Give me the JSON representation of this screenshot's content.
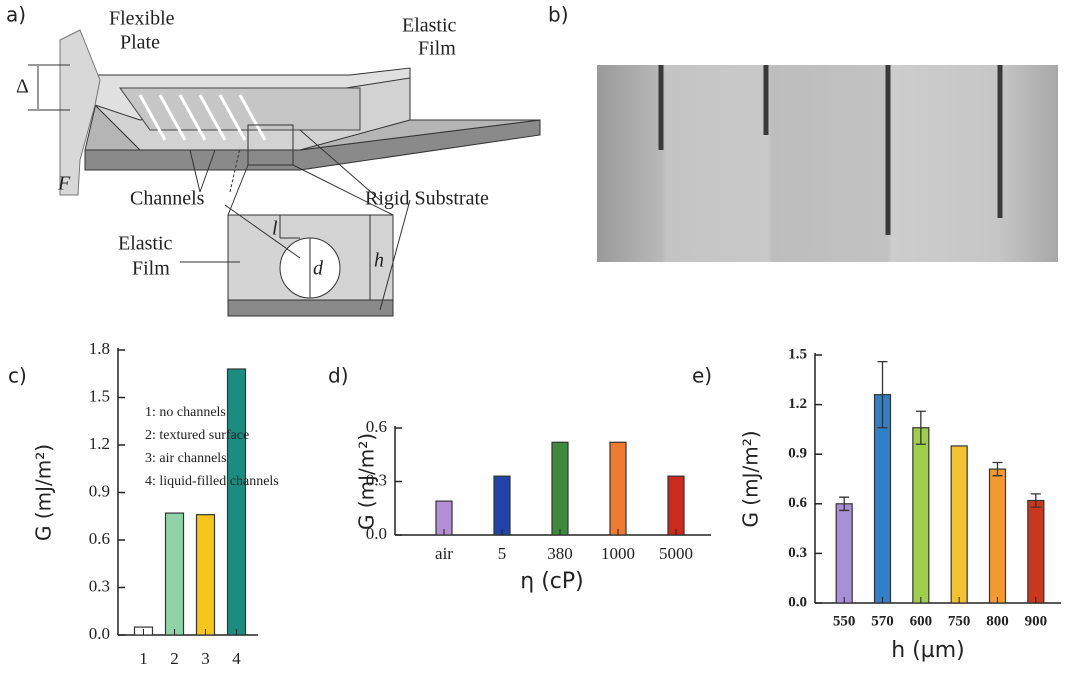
{
  "panel_labels": [
    "a)",
    "b)"
  ],
  "diagram": {
    "labels": [
      "Flexible",
      "Plate",
      "Elastic",
      "Film",
      "Δ",
      "F",
      "Channels",
      "Rigid Substrate",
      "Elastic",
      "Film",
      "l",
      "d",
      "h"
    ]
  },
  "chart_data": [
    {
      "type": "bar",
      "panel_label": "c)",
      "ylabel": "G (mJ/m²)",
      "categories": [
        "1",
        "2",
        "3",
        "4"
      ],
      "values": [
        0.05,
        0.77,
        0.76,
        1.68
      ],
      "colors": [
        "#ffffff",
        "#8fd4a8",
        "#f5c518",
        "#1a8c80"
      ],
      "ylim": [
        0,
        1.8
      ],
      "yticks": [
        {
          "value": 0,
          "label": "0.0"
        },
        0.3,
        0.6,
        0.9,
        1.2,
        1.5,
        1.8
      ],
      "annotations": [
        "1: no channels",
        "2: textured surface",
        "3: air channels",
        "4: liquid-filled channels"
      ]
    },
    {
      "type": "bar",
      "panel_label": "d)",
      "ylabel": "G (mJ/m²)",
      "xlabel": "η (cP)",
      "categories": [
        "air",
        "5",
        "380",
        "1000",
        "5000"
      ],
      "values": [
        0.19,
        0.33,
        0.52,
        0.52,
        0.33
      ],
      "colors": [
        "#b48fd6",
        "#2244aa",
        "#3d8a3d",
        "#f07a30",
        "#cc2a1a"
      ],
      "ylim": [
        0,
        0.6
      ],
      "yticks": [
        {
          "value": 0,
          "label": "0.0"
        },
        0.3,
        0.6
      ]
    },
    {
      "type": "bar",
      "panel_label": "e)",
      "ylabel": "G (mJ/m²)",
      "xlabel": "h (µm)",
      "categories": [
        "550",
        "570",
        "600",
        "750",
        "800",
        "900"
      ],
      "values": [
        0.6,
        1.26,
        1.06,
        0.95,
        0.81,
        0.62
      ],
      "errors": [
        0.04,
        0.2,
        0.1,
        null,
        0.04,
        0.04
      ],
      "colors": [
        "#a98fd8",
        "#2f7fc9",
        "#9fce4a",
        "#f2c230",
        "#f29a2e",
        "#c8371e"
      ],
      "ylim": [
        0,
        1.5
      ],
      "yticks": [
        {
          "value": 0,
          "label": "0.0"
        },
        0.3,
        0.6,
        0.9,
        1.2,
        1.5
      ]
    }
  ]
}
